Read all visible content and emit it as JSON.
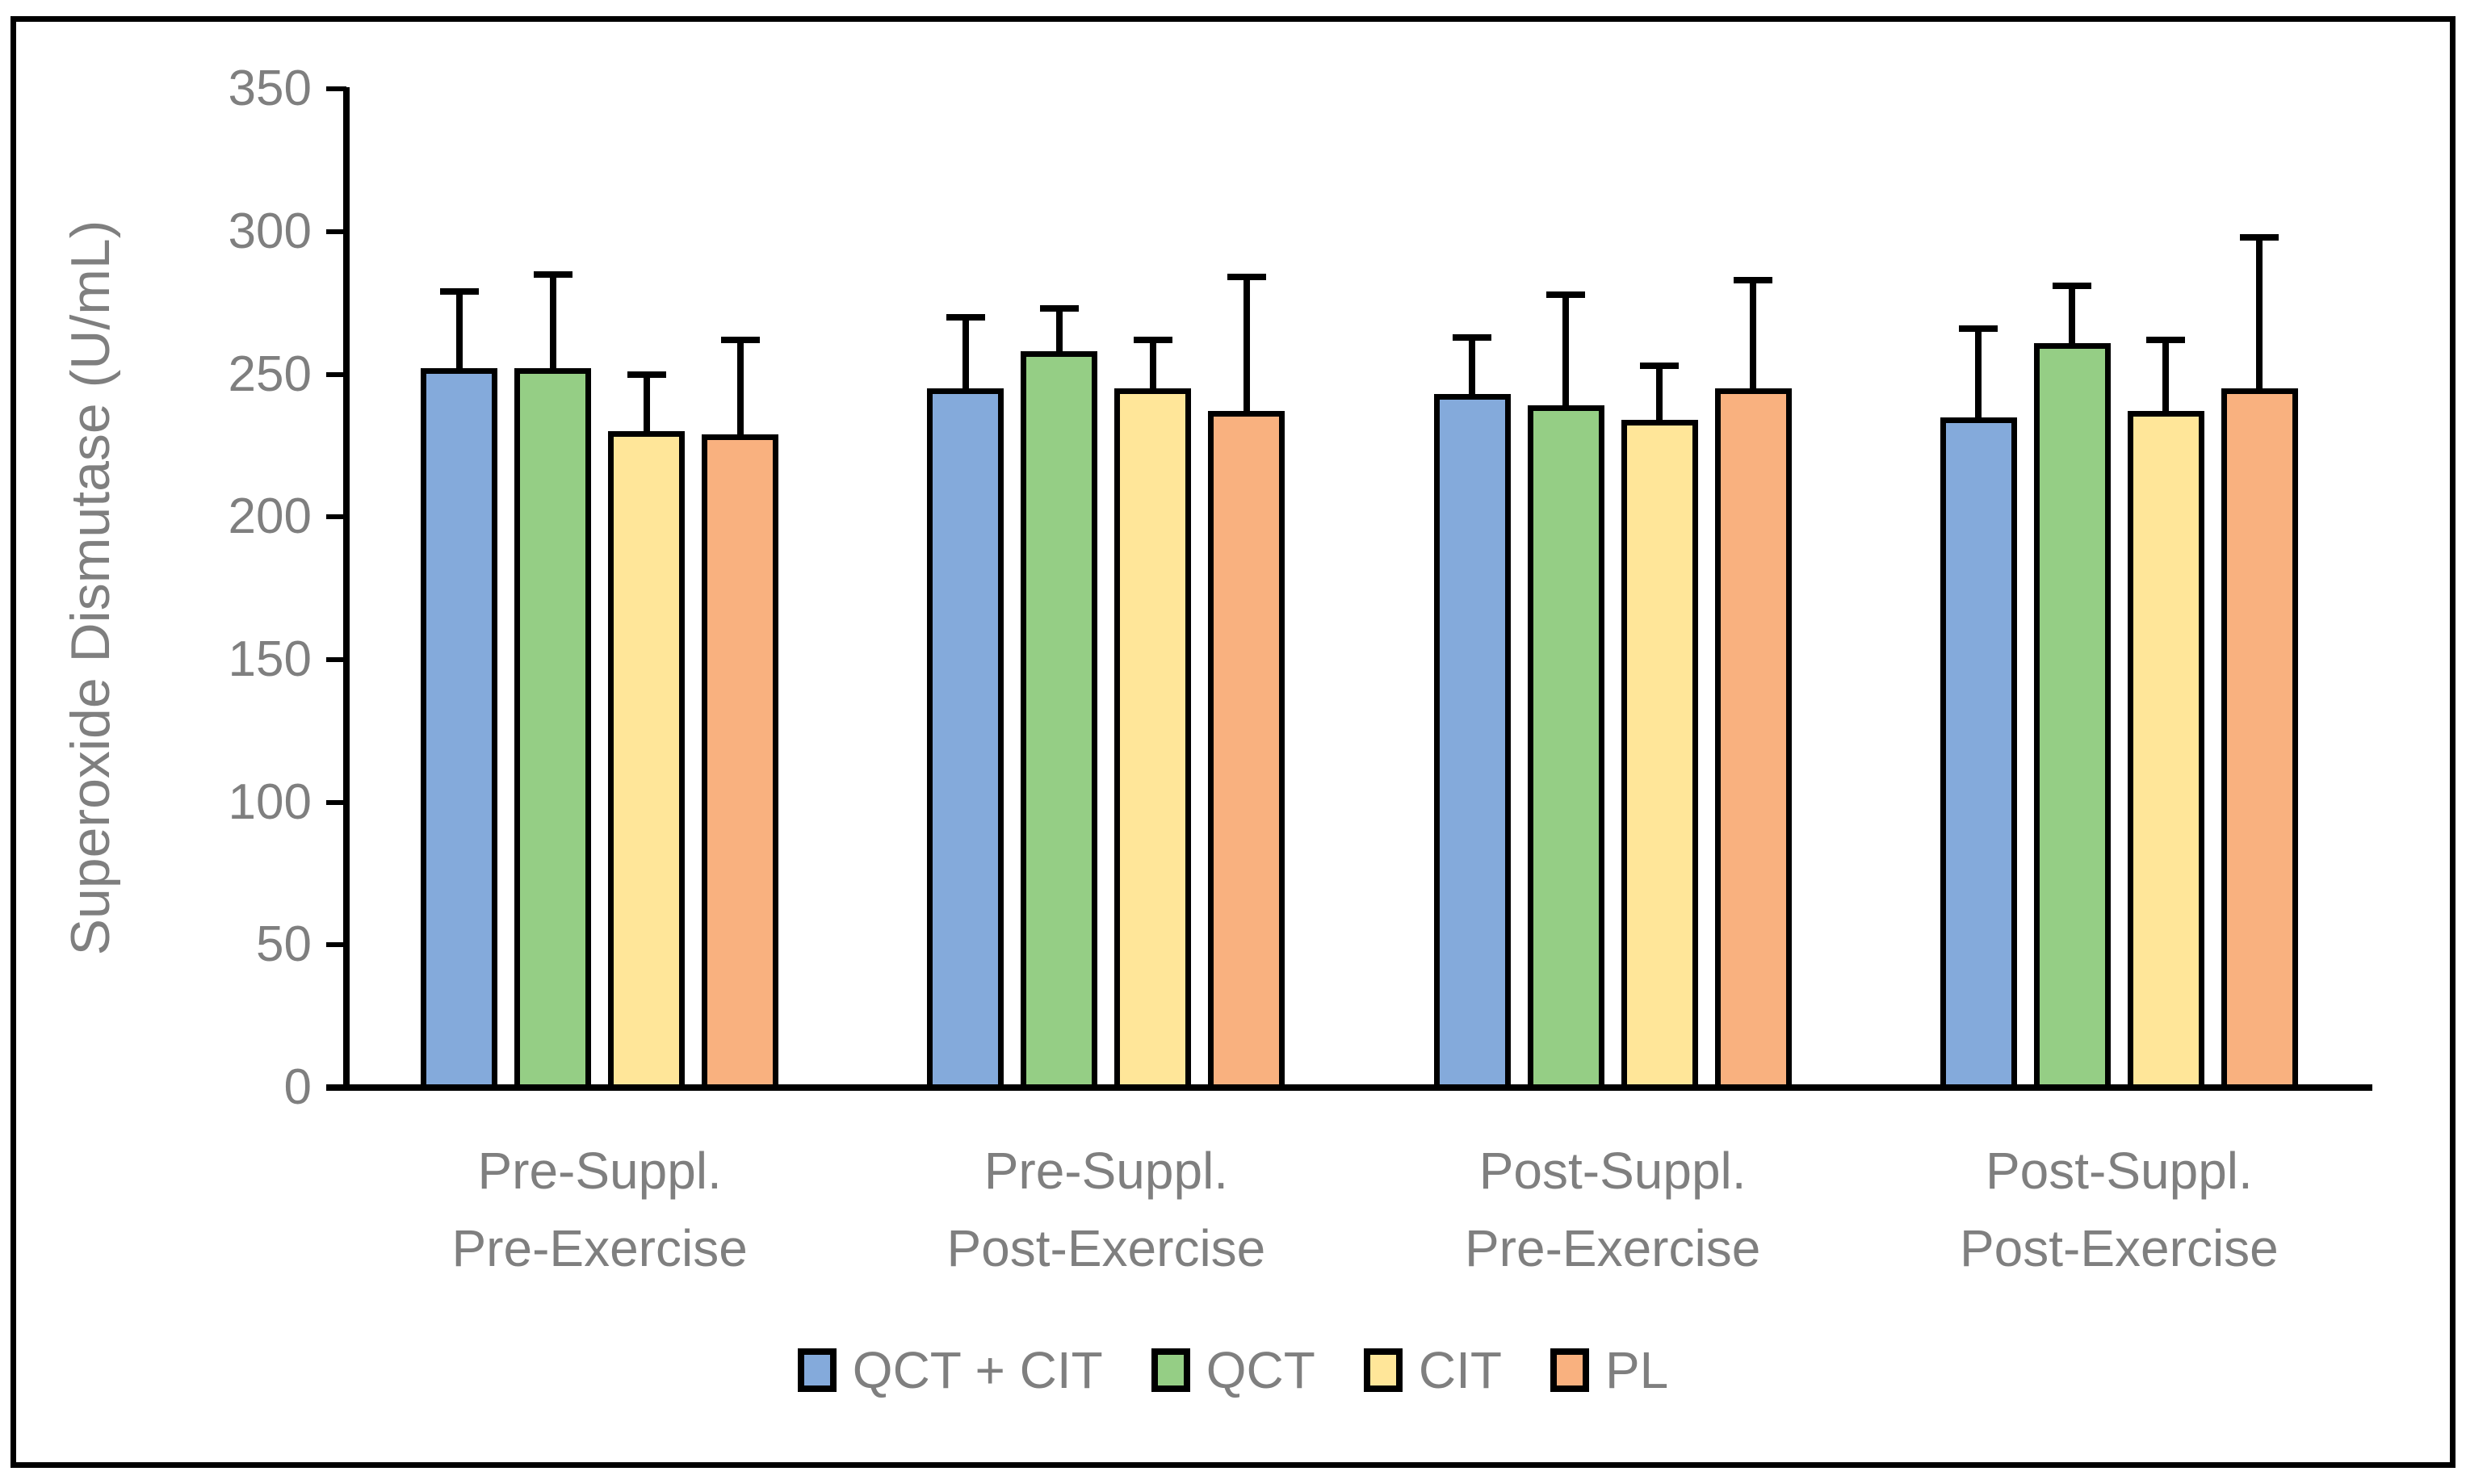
{
  "chart_data": {
    "type": "bar",
    "title": "",
    "xlabel": "",
    "ylabel": "Superoxide Dismutase (U/mL)",
    "ylim": [
      0,
      350
    ],
    "yticks": [
      0,
      50,
      100,
      150,
      200,
      250,
      300,
      350
    ],
    "grid": false,
    "legend_position": "bottom-center",
    "background_color": "#ffffff",
    "frame_color": "#000000",
    "axis_color": "#000000",
    "text_color": "#7f7f7f",
    "bar_outline_color": "#000000",
    "error_bar_color": "#000000",
    "error_bars": "upper only, cap ends",
    "categories": [
      [
        "Pre-Suppl.",
        "Pre-Exercise"
      ],
      [
        "Pre-Suppl.",
        "Post-Exercise"
      ],
      [
        "Post-Suppl.",
        "Pre-Exercise"
      ],
      [
        "Post-Suppl.",
        "Post-Exercise"
      ]
    ],
    "series": [
      {
        "name": "QCT + CIT",
        "color": "#84aadb",
        "values": [
          252,
          245,
          243,
          235
        ],
        "errors_up": [
          27,
          25,
          20,
          31
        ]
      },
      {
        "name": "QCT",
        "color": "#95ce85",
        "values": [
          252,
          258,
          239,
          261
        ],
        "errors_up": [
          33,
          15,
          39,
          20
        ]
      },
      {
        "name": "CIT",
        "color": "#ffe699",
        "values": [
          230,
          245,
          234,
          237
        ],
        "errors_up": [
          20,
          17,
          19,
          25
        ]
      },
      {
        "name": "PL",
        "color": "#f9b17f",
        "values": [
          229,
          237,
          245,
          245
        ],
        "errors_up": [
          33,
          47,
          38,
          53
        ]
      }
    ]
  }
}
